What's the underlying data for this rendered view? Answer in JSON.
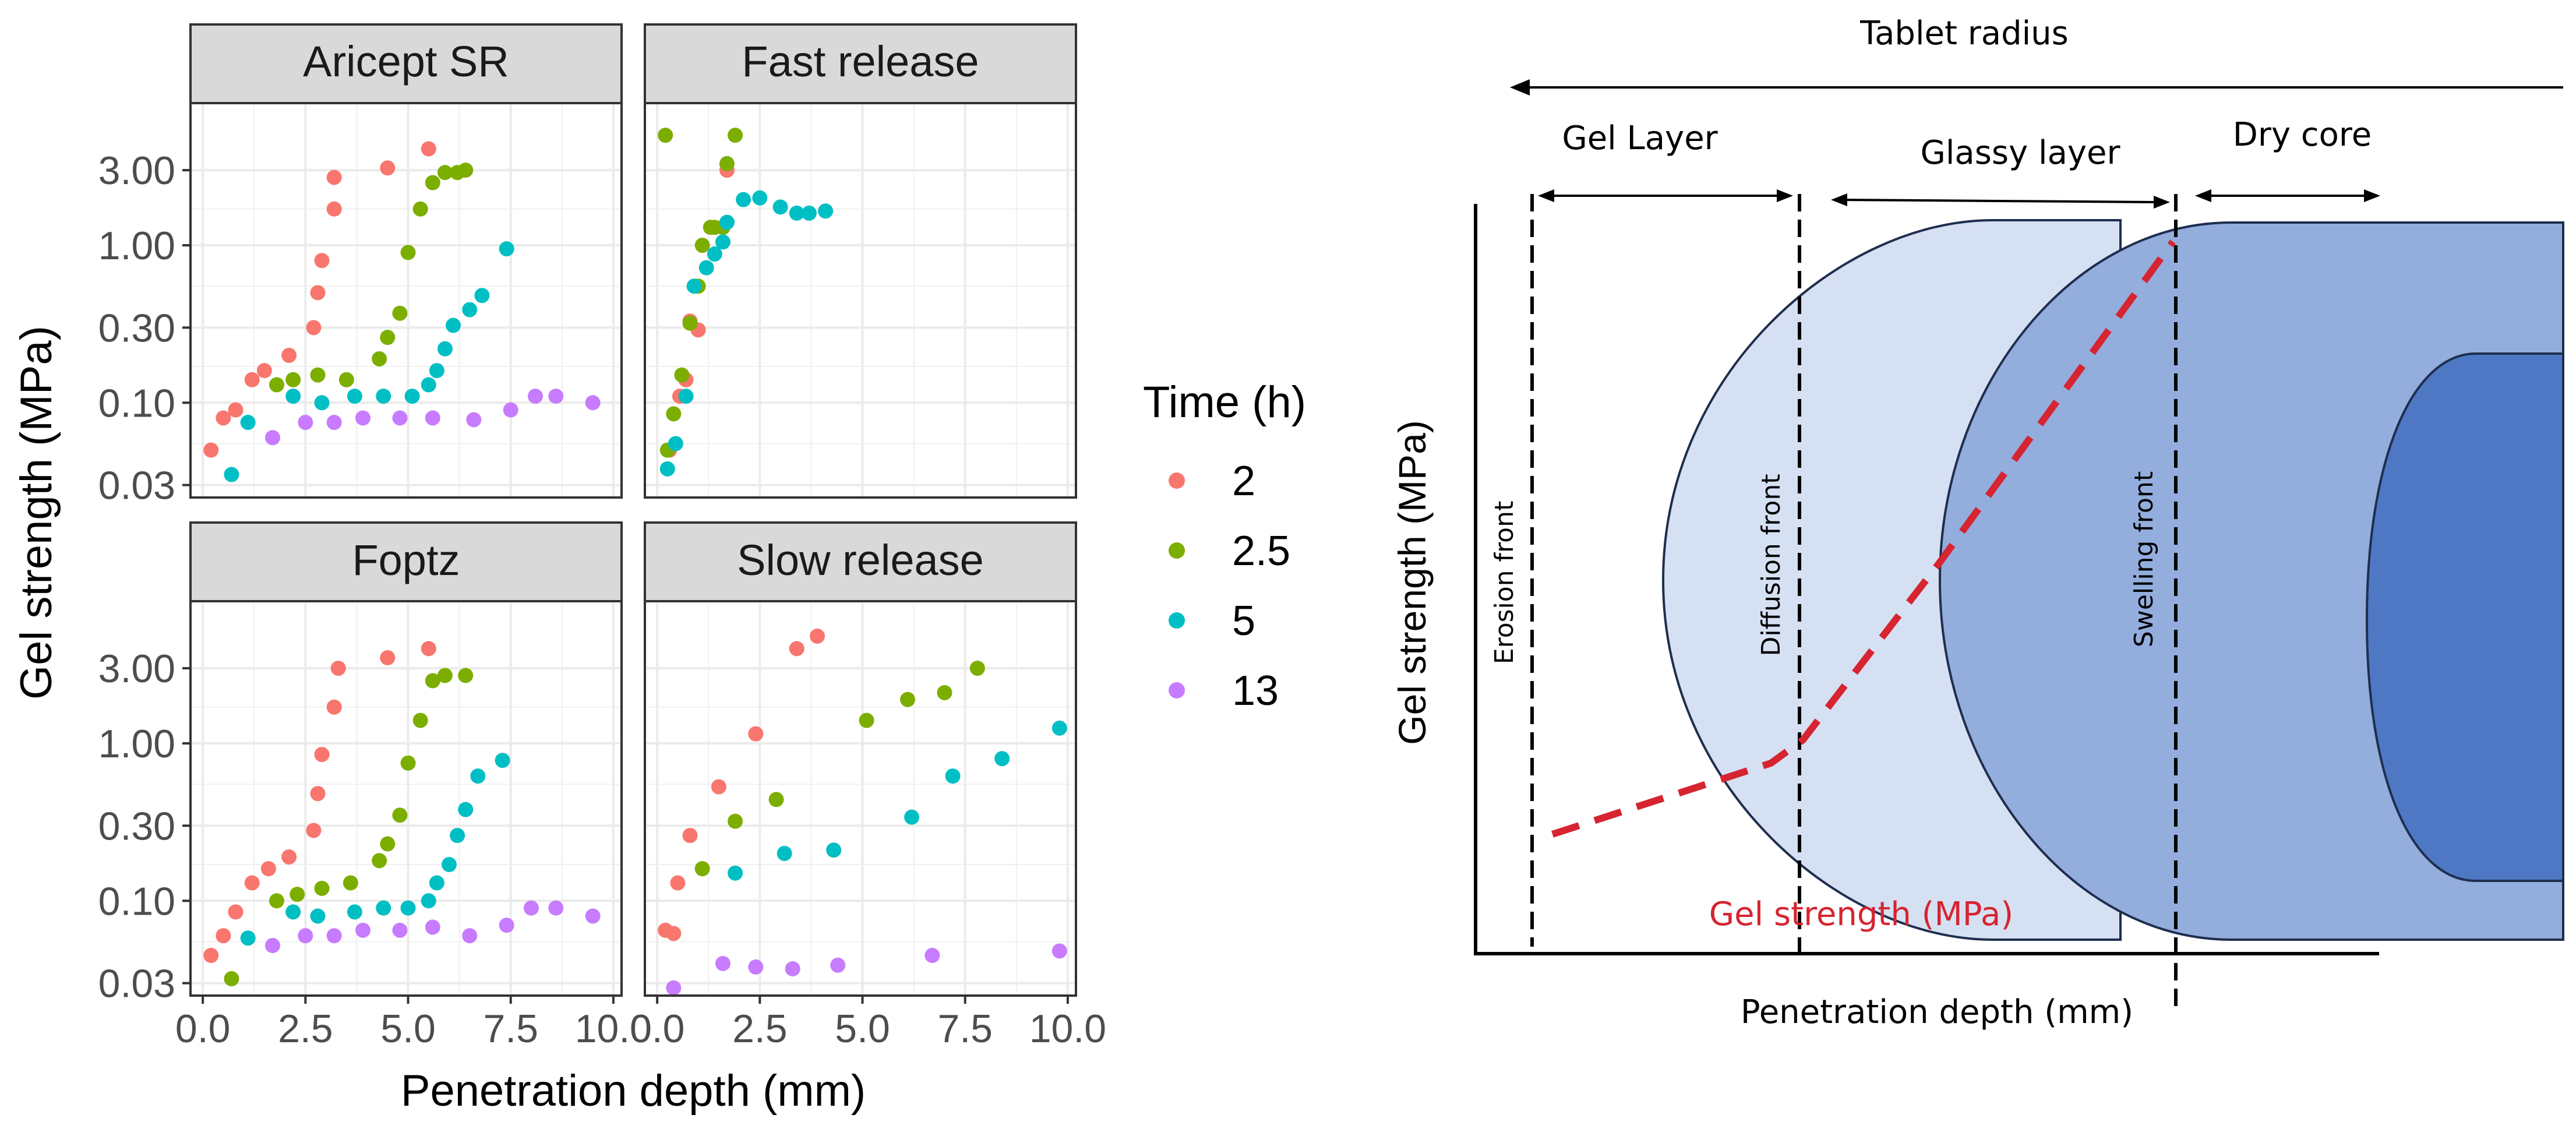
{
  "chart_data": [
    {
      "type": "scatter",
      "layout": "facet-grid 2x2",
      "xlabel": "Penetration depth (mm)",
      "ylabel": "Gel strength (MPa)",
      "y_scale": "log10",
      "ylim": [
        0.025,
        8.0
      ],
      "y_ticks": [
        0.03,
        0.1,
        0.3,
        1.0,
        3.0
      ],
      "y_tick_labels": [
        "0.03",
        "0.10",
        "0.30",
        "1.00",
        "3.00"
      ],
      "x_ticks": [
        0,
        2.5,
        5,
        7.5,
        10
      ],
      "x_tick_labels": [
        "0.0",
        "2.5",
        "5.0",
        "7.5",
        "10.0"
      ],
      "xlim": [
        -0.3,
        10.2
      ],
      "grid": true,
      "legend": {
        "title": "Time (h)",
        "position": "right",
        "entries": [
          {
            "label": "2",
            "color": "#F8766D"
          },
          {
            "label": "2.5",
            "color": "#7CAE00"
          },
          {
            "label": "5",
            "color": "#00BFC4"
          },
          {
            "label": "13",
            "color": "#C77CFF"
          }
        ]
      },
      "facets": [
        {
          "title": "Aricept SR",
          "series": [
            {
              "name": "2",
              "points": [
                [
                  0.2,
                  0.05
                ],
                [
                  0.5,
                  0.08
                ],
                [
                  0.8,
                  0.09
                ],
                [
                  1.2,
                  0.14
                ],
                [
                  1.5,
                  0.16
                ],
                [
                  2.1,
                  0.2
                ],
                [
                  2.7,
                  0.3
                ],
                [
                  2.8,
                  0.5
                ],
                [
                  2.9,
                  0.8
                ],
                [
                  3.2,
                  1.7
                ],
                [
                  3.2,
                  2.7
                ],
                [
                  4.5,
                  3.1
                ],
                [
                  5.5,
                  4.1
                ]
              ]
            },
            {
              "name": "2.5",
              "points": [
                [
                  1.8,
                  0.13
                ],
                [
                  2.2,
                  0.14
                ],
                [
                  2.8,
                  0.15
                ],
                [
                  3.5,
                  0.14
                ],
                [
                  4.3,
                  0.19
                ],
                [
                  4.5,
                  0.26
                ],
                [
                  4.8,
                  0.37
                ],
                [
                  5,
                  0.9
                ],
                [
                  5.3,
                  1.7
                ],
                [
                  5.6,
                  2.5
                ],
                [
                  5.9,
                  2.9
                ],
                [
                  6.2,
                  2.9
                ],
                [
                  6.4,
                  3.0
                ]
              ]
            },
            {
              "name": "5",
              "points": [
                [
                  0.7,
                  0.035
                ],
                [
                  1.1,
                  0.075
                ],
                [
                  2.2,
                  0.11
                ],
                [
                  2.9,
                  0.1
                ],
                [
                  3.7,
                  0.11
                ],
                [
                  4.4,
                  0.11
                ],
                [
                  5.1,
                  0.11
                ],
                [
                  5.5,
                  0.13
                ],
                [
                  5.7,
                  0.16
                ],
                [
                  5.9,
                  0.22
                ],
                [
                  6.1,
                  0.31
                ],
                [
                  6.5,
                  0.39
                ],
                [
                  6.8,
                  0.48
                ],
                [
                  7.4,
                  0.95
                ]
              ]
            },
            {
              "name": "13",
              "points": [
                [
                  1.7,
                  0.06
                ],
                [
                  2.5,
                  0.075
                ],
                [
                  3.2,
                  0.075
                ],
                [
                  3.9,
                  0.08
                ],
                [
                  4.8,
                  0.08
                ],
                [
                  5.6,
                  0.08
                ],
                [
                  6.6,
                  0.078
                ],
                [
                  7.5,
                  0.09
                ],
                [
                  8.1,
                  0.11
                ],
                [
                  8.6,
                  0.11
                ],
                [
                  9.5,
                  0.1
                ]
              ]
            }
          ]
        },
        {
          "title": "Fast release",
          "series": [
            {
              "name": "2",
              "points": [
                [
                  0.3,
                  0.05
                ],
                [
                  0.55,
                  0.11
                ],
                [
                  0.7,
                  0.14
                ],
                [
                  0.8,
                  0.33
                ],
                [
                  1,
                  0.29
                ],
                [
                  1.7,
                  3.0
                ]
              ]
            },
            {
              "name": "2.5",
              "points": [
                [
                  0.2,
                  5.0
                ],
                [
                  0.25,
                  0.05
                ],
                [
                  0.4,
                  0.085
                ],
                [
                  0.6,
                  0.15
                ],
                [
                  0.8,
                  0.32
                ],
                [
                  1,
                  0.55
                ],
                [
                  1.1,
                  1.0
                ],
                [
                  1.3,
                  1.3
                ],
                [
                  1.4,
                  1.3
                ],
                [
                  1.6,
                  1.3
                ],
                [
                  1.7,
                  3.3
                ],
                [
                  1.9,
                  5.0
                ]
              ]
            },
            {
              "name": "5",
              "points": [
                [
                  0.25,
                  0.038
                ],
                [
                  0.45,
                  0.055
                ],
                [
                  0.7,
                  0.11
                ],
                [
                  0.9,
                  0.55
                ],
                [
                  1.2,
                  0.72
                ],
                [
                  1.4,
                  0.88
                ],
                [
                  1.6,
                  1.05
                ],
                [
                  1.7,
                  1.4
                ],
                [
                  2.1,
                  1.95
                ],
                [
                  2.5,
                  2.0
                ],
                [
                  3,
                  1.75
                ],
                [
                  3.4,
                  1.6
                ],
                [
                  3.7,
                  1.6
                ],
                [
                  4.1,
                  1.65
                ]
              ]
            }
          ]
        },
        {
          "title": "Foptz",
          "series": [
            {
              "name": "2",
              "points": [
                [
                  0.2,
                  0.045
                ],
                [
                  0.5,
                  0.06
                ],
                [
                  0.8,
                  0.085
                ],
                [
                  1.2,
                  0.13
                ],
                [
                  1.6,
                  0.16
                ],
                [
                  2.1,
                  0.19
                ],
                [
                  2.7,
                  0.28
                ],
                [
                  2.8,
                  0.48
                ],
                [
                  2.9,
                  0.85
                ],
                [
                  3.2,
                  1.7
                ],
                [
                  3.3,
                  3.0
                ],
                [
                  4.5,
                  3.5
                ],
                [
                  5.5,
                  4.0
                ]
              ]
            },
            {
              "name": "2.5",
              "points": [
                [
                  0.7,
                  0.032
                ],
                [
                  1.8,
                  0.1
                ],
                [
                  2.3,
                  0.11
                ],
                [
                  2.9,
                  0.12
                ],
                [
                  3.6,
                  0.13
                ],
                [
                  4.3,
                  0.18
                ],
                [
                  4.5,
                  0.23
                ],
                [
                  4.8,
                  0.35
                ],
                [
                  5,
                  0.75
                ],
                [
                  5.3,
                  1.4
                ],
                [
                  5.6,
                  2.5
                ],
                [
                  5.9,
                  2.7
                ],
                [
                  6.4,
                  2.7
                ]
              ]
            },
            {
              "name": "5",
              "points": [
                [
                  1.1,
                  0.058
                ],
                [
                  2.2,
                  0.085
                ],
                [
                  2.8,
                  0.08
                ],
                [
                  3.7,
                  0.085
                ],
                [
                  4.4,
                  0.09
                ],
                [
                  5,
                  0.09
                ],
                [
                  5.5,
                  0.1
                ],
                [
                  5.7,
                  0.13
                ],
                [
                  6,
                  0.17
                ],
                [
                  6.2,
                  0.26
                ],
                [
                  6.4,
                  0.38
                ],
                [
                  6.7,
                  0.62
                ],
                [
                  7.3,
                  0.78
                ]
              ]
            },
            {
              "name": "13",
              "points": [
                [
                  1.7,
                  0.052
                ],
                [
                  2.5,
                  0.06
                ],
                [
                  3.2,
                  0.06
                ],
                [
                  3.9,
                  0.065
                ],
                [
                  4.8,
                  0.065
                ],
                [
                  5.6,
                  0.068
                ],
                [
                  6.5,
                  0.06
                ],
                [
                  7.4,
                  0.07
                ],
                [
                  8,
                  0.09
                ],
                [
                  8.6,
                  0.09
                ],
                [
                  9.5,
                  0.08
                ]
              ]
            }
          ]
        },
        {
          "title": "Slow release",
          "series": [
            {
              "name": "2",
              "points": [
                [
                  0.2,
                  0.065
                ],
                [
                  0.4,
                  0.062
                ],
                [
                  0.5,
                  0.13
                ],
                [
                  0.8,
                  0.26
                ],
                [
                  1.5,
                  0.53
                ],
                [
                  2.4,
                  1.15
                ],
                [
                  3.4,
                  4.0
                ],
                [
                  3.9,
                  4.8
                ]
              ]
            },
            {
              "name": "2.5",
              "points": [
                [
                  1.1,
                  0.16
                ],
                [
                  1.9,
                  0.32
                ],
                [
                  2.9,
                  0.44
                ],
                [
                  5.1,
                  1.4
                ],
                [
                  6.1,
                  1.9
                ],
                [
                  7,
                  2.1
                ],
                [
                  7.8,
                  3.0
                ]
              ]
            },
            {
              "name": "5",
              "points": [
                [
                  1.9,
                  0.15
                ],
                [
                  3.1,
                  0.2
                ],
                [
                  4.3,
                  0.21
                ],
                [
                  6.2,
                  0.34
                ],
                [
                  7.2,
                  0.62
                ],
                [
                  8.4,
                  0.8
                ],
                [
                  9.8,
                  1.25
                ]
              ]
            },
            {
              "name": "13",
              "points": [
                [
                  0.4,
                  0.028
                ],
                [
                  1.6,
                  0.04
                ],
                [
                  2.4,
                  0.038
                ],
                [
                  3.3,
                  0.037
                ],
                [
                  4.4,
                  0.039
                ],
                [
                  6.7,
                  0.045
                ],
                [
                  9.8,
                  0.048
                ]
              ]
            }
          ]
        }
      ]
    },
    {
      "type": "diagram",
      "title": "Tablet radius",
      "layer_labels": [
        "Gel Layer",
        "Glassy layer",
        "Dry core"
      ],
      "front_labels": [
        "Erosion front",
        "Diffusion front",
        "Swelling front"
      ],
      "xlabel": "Penetration depth (mm)",
      "ylabel": "Gel strength (MPa)",
      "curve_label": "Gel strength (MPa)",
      "colors": {
        "gel": "#D6E0F3",
        "glassy": "#93ADDD",
        "core": "#4E78C4",
        "outline": "#1F2E4E",
        "curve": "#D62430"
      }
    }
  ]
}
